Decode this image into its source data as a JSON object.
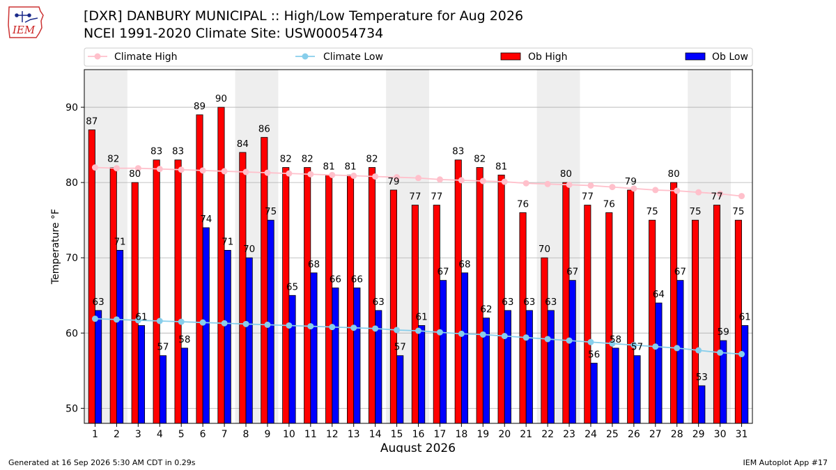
{
  "header": {
    "title_line1": "[DXR] DANBURY MUNICIPAL :: High/Low Temperature for Aug 2026",
    "title_line2": "NCEI 1991-2020 Climate Site: USW00054734",
    "logo_text": "IEM"
  },
  "footer": {
    "generated": "Generated at 16 Sep 2026 5:30 AM CDT in 0.29s",
    "app": "IEM Autoplot App #17"
  },
  "colors": {
    "ob_high": "#ff0000",
    "ob_low": "#0000ff",
    "climate_high": "#ffc0cb",
    "climate_low": "#87ceeb",
    "weekend_band": "#eeeeee",
    "grid": "#b0b0b0"
  },
  "chart_data": {
    "type": "bar",
    "title": "[DXR] DANBURY MUNICIPAL :: High/Low Temperature for Aug 2026",
    "subtitle": "NCEI 1991-2020 Climate Site: USW00054734",
    "xlabel": "August 2026",
    "ylabel": "Temperature °F",
    "ylim": [
      48,
      95
    ],
    "xlim": [
      0.5,
      31.5
    ],
    "yticks": [
      50,
      60,
      70,
      80,
      90
    ],
    "grid": true,
    "legend_position": "top",
    "legend": [
      "Climate High",
      "Climate Low",
      "Ob High",
      "Ob Low"
    ],
    "shaded_week_bands": [
      [
        1,
        2
      ],
      [
        8,
        9
      ],
      [
        15,
        16
      ],
      [
        22,
        23
      ],
      [
        29,
        30
      ]
    ],
    "categories": [
      1,
      2,
      3,
      4,
      5,
      6,
      7,
      8,
      9,
      10,
      11,
      12,
      13,
      14,
      15,
      16,
      17,
      18,
      19,
      20,
      21,
      22,
      23,
      24,
      25,
      26,
      27,
      28,
      29,
      30,
      31
    ],
    "series": [
      {
        "name": "Ob High",
        "kind": "bar",
        "values": [
          87,
          82,
          80,
          83,
          83,
          89,
          90,
          84,
          86,
          82,
          82,
          81,
          81,
          82,
          79,
          77,
          77,
          83,
          82,
          81,
          76,
          70,
          80,
          77,
          76,
          79,
          75,
          80,
          75,
          77,
          75
        ]
      },
      {
        "name": "Ob Low",
        "kind": "bar",
        "values": [
          63,
          71,
          61,
          57,
          58,
          74,
          71,
          70,
          75,
          65,
          68,
          66,
          66,
          63,
          57,
          61,
          67,
          68,
          62,
          63,
          63,
          63,
          67,
          56,
          58,
          57,
          64,
          67,
          53,
          59,
          61
        ]
      },
      {
        "name": "Climate High",
        "kind": "line",
        "values": [
          82.0,
          81.9,
          81.9,
          81.8,
          81.7,
          81.6,
          81.5,
          81.4,
          81.3,
          81.2,
          81.1,
          81.0,
          80.9,
          80.8,
          80.7,
          80.6,
          80.4,
          80.3,
          80.2,
          80.1,
          79.9,
          79.8,
          79.7,
          79.6,
          79.4,
          79.2,
          79.0,
          78.9,
          78.7,
          78.5,
          78.2
        ]
      },
      {
        "name": "Climate Low",
        "kind": "line",
        "values": [
          61.9,
          61.8,
          61.7,
          61.6,
          61.5,
          61.4,
          61.3,
          61.2,
          61.1,
          61.0,
          60.9,
          60.8,
          60.7,
          60.6,
          60.4,
          60.3,
          60.1,
          59.9,
          59.8,
          59.6,
          59.4,
          59.2,
          59.0,
          58.8,
          58.6,
          58.4,
          58.2,
          58.0,
          57.7,
          57.4,
          57.2
        ]
      }
    ]
  }
}
